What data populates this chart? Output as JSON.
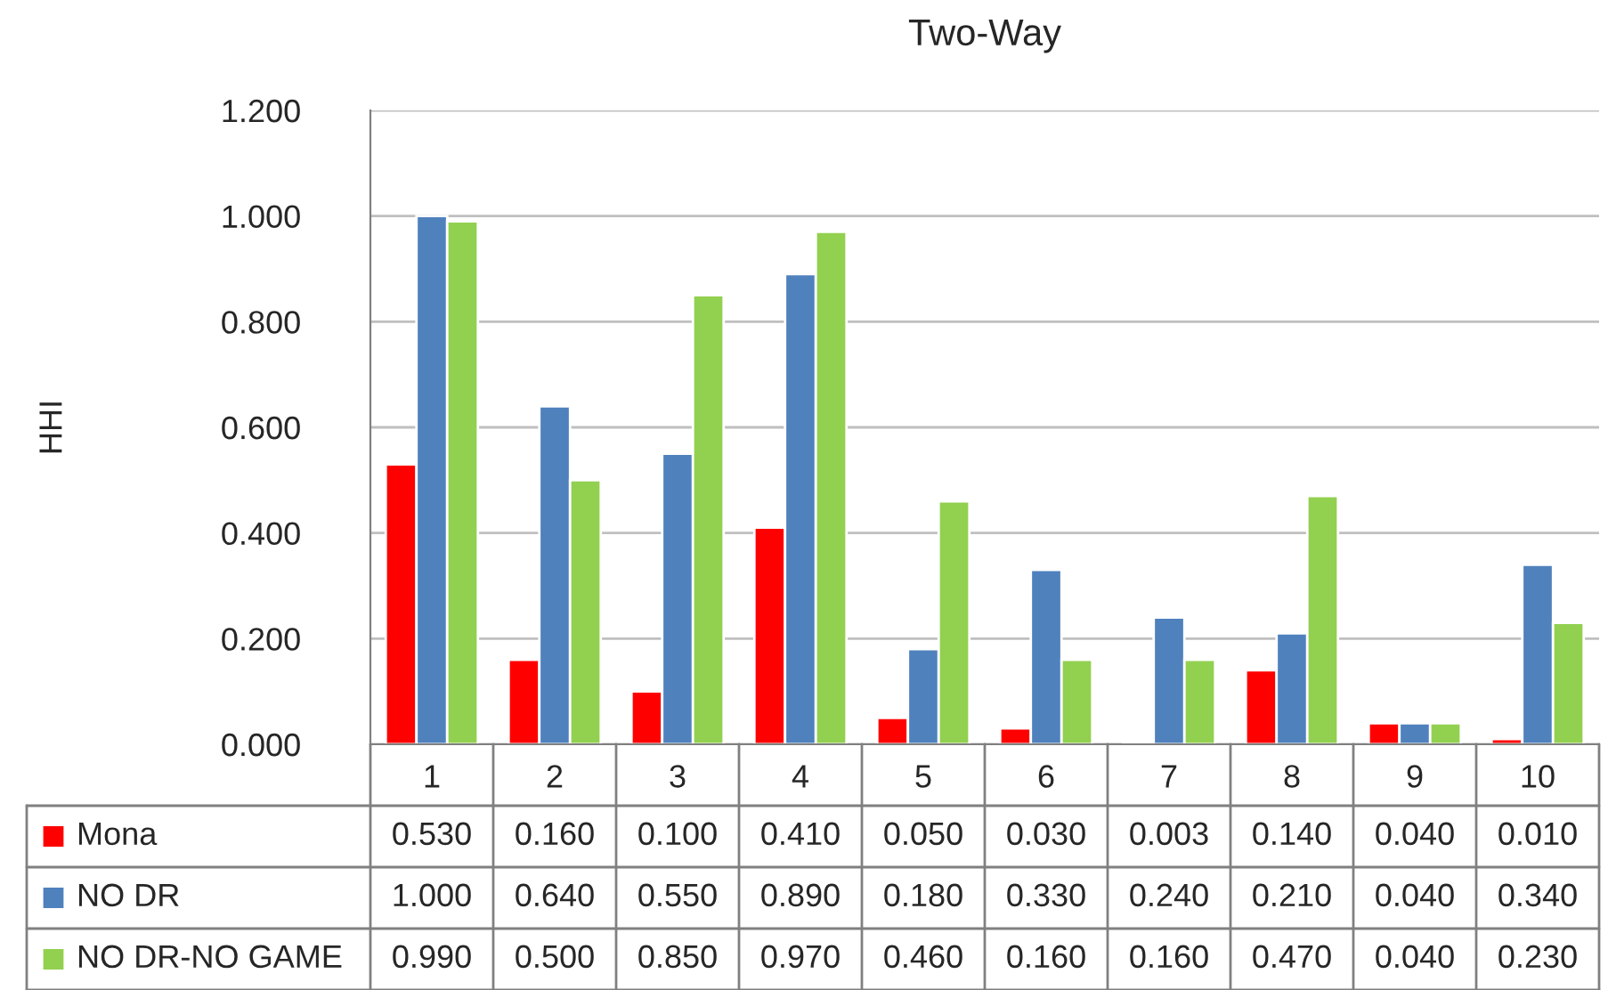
{
  "chart_data": {
    "type": "bar",
    "title": "Two-Way",
    "ylabel": "HHI",
    "categories": [
      "1",
      "2",
      "3",
      "4",
      "5",
      "6",
      "7",
      "8",
      "9",
      "10"
    ],
    "series": [
      {
        "name": "Mona",
        "color": "#ff0000",
        "values": [
          0.53,
          0.16,
          0.1,
          0.41,
          0.05,
          0.03,
          0.003,
          0.14,
          0.04,
          0.01
        ],
        "value_labels": [
          "0.530",
          "0.160",
          "0.100",
          "0.410",
          "0.050",
          "0.030",
          "0.003",
          "0.140",
          "0.040",
          "0.010"
        ]
      },
      {
        "name": "NO DR",
        "color": "#4f81bd",
        "values": [
          1.0,
          0.64,
          0.55,
          0.89,
          0.18,
          0.33,
          0.24,
          0.21,
          0.04,
          0.34
        ],
        "value_labels": [
          "1.000",
          "0.640",
          "0.550",
          "0.890",
          "0.180",
          "0.330",
          "0.240",
          "0.210",
          "0.040",
          "0.340"
        ]
      },
      {
        "name": "NO DR-NO GAME",
        "color": "#92d050",
        "values": [
          0.99,
          0.5,
          0.85,
          0.97,
          0.46,
          0.16,
          0.16,
          0.47,
          0.04,
          0.23
        ],
        "value_labels": [
          "0.990",
          "0.500",
          "0.850",
          "0.970",
          "0.460",
          "0.160",
          "0.160",
          "0.470",
          "0.040",
          "0.230"
        ]
      }
    ],
    "ylim": [
      0,
      1.2
    ],
    "yticks": [
      {
        "value": 0,
        "label": "0.000"
      },
      {
        "value": 0.2,
        "label": "0.200"
      },
      {
        "value": 0.4,
        "label": "0.400"
      },
      {
        "value": 0.6,
        "label": "0.600"
      },
      {
        "value": 0.8,
        "label": "0.800"
      },
      {
        "value": 1.0,
        "label": "1.000"
      },
      {
        "value": 1.2,
        "label": "1.200"
      }
    ],
    "grid": "y",
    "legend": "bottom left"
  }
}
